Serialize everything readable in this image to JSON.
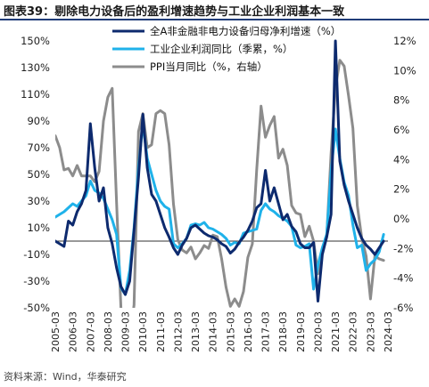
{
  "header": {
    "title": "图表39：剔除电力设备后的盈利增速趋势与工业企业利润基本一致"
  },
  "footer": {
    "source": "资料来源：Wind，华泰研究"
  },
  "colors": {
    "series1": "#0d2a6e",
    "series2": "#1fb2ea",
    "series3": "#8c8c8c",
    "title_rule": "#1f3c78"
  },
  "chart_data": {
    "type": "line",
    "y_left": {
      "min": -50,
      "max": 150,
      "ticks": [
        -50,
        -30,
        -10,
        10,
        30,
        50,
        70,
        90,
        110,
        130,
        150
      ],
      "tick_labels": [
        "-50%",
        "-30%",
        "-10%",
        "10%",
        "30%",
        "50%",
        "70%",
        "90%",
        "110%",
        "130%",
        "150%"
      ]
    },
    "y_right": {
      "min": -6,
      "max": 12,
      "ticks": [
        -6,
        -4,
        -2,
        0,
        2,
        4,
        6,
        8,
        10,
        12
      ],
      "tick_labels": [
        "-6%",
        "-4%",
        "-2%",
        "0%",
        "2%",
        "4%",
        "6%",
        "8%",
        "10%",
        "12%"
      ]
    },
    "x_ticks": [
      "2005-03",
      "2006-03",
      "2007-03",
      "2008-03",
      "2009-03",
      "2010-03",
      "2011-03",
      "2012-03",
      "2013-03",
      "2014-03",
      "2015-03",
      "2016-03",
      "2017-03",
      "2018-03",
      "2019-03",
      "2020-03",
      "2021-03",
      "2022-03",
      "2023-03",
      "2024-03"
    ],
    "legend_position": "top-right",
    "series": [
      {
        "name": "全A非金融非电力设备归母净利增速（%）",
        "axis": "left",
        "x": [
          2005.25,
          2005.5,
          2005.75,
          2006,
          2006.25,
          2006.5,
          2006.75,
          2007,
          2007.25,
          2007.5,
          2007.75,
          2008,
          2008.25,
          2008.5,
          2008.75,
          2009,
          2009.25,
          2009.5,
          2009.75,
          2010,
          2010.25,
          2010.5,
          2010.75,
          2011,
          2011.25,
          2011.5,
          2011.75,
          2012,
          2012.25,
          2012.5,
          2012.75,
          2013,
          2013.25,
          2013.5,
          2013.75,
          2014,
          2014.25,
          2014.5,
          2014.75,
          2015,
          2015.25,
          2015.5,
          2015.75,
          2016,
          2016.25,
          2016.5,
          2016.75,
          2017,
          2017.25,
          2017.5,
          2017.75,
          2018,
          2018.25,
          2018.5,
          2018.75,
          2019,
          2019.25,
          2019.5,
          2019.75,
          2020,
          2020.25,
          2020.5,
          2020.75,
          2021,
          2021.25,
          2021.5,
          2021.75,
          2022,
          2022.25,
          2022.5,
          2022.75,
          2023,
          2023.25,
          2023.5,
          2023.75,
          2024
        ],
        "y": [
          0,
          -2,
          -4,
          15,
          12,
          22,
          28,
          38,
          88,
          55,
          30,
          40,
          10,
          -2,
          -20,
          -34,
          -40,
          -30,
          8,
          48,
          95,
          55,
          35,
          30,
          20,
          10,
          3,
          -5,
          -10,
          -3,
          2,
          10,
          12,
          9,
          6,
          4,
          3,
          1,
          -2,
          -4,
          -9,
          -6,
          -1,
          3,
          8,
          15,
          25,
          28,
          53,
          30,
          40,
          28,
          16,
          20,
          11,
          7,
          -2,
          -5,
          -5,
          -1,
          -45,
          -10,
          3,
          20,
          150,
          60,
          42,
          30,
          20,
          10,
          2,
          -3,
          -6,
          -10,
          -5,
          0
        ]
      },
      {
        "name": "工业企业利润同比（季累，%）",
        "axis": "left",
        "x": [
          2005.25,
          2005.5,
          2005.75,
          2006,
          2006.25,
          2006.5,
          2006.75,
          2007,
          2007.25,
          2007.5,
          2007.75,
          2008,
          2008.25,
          2008.5,
          2008.75,
          2009,
          2009.25,
          2009.5,
          2009.75,
          2010,
          2010.25,
          2010.5,
          2010.75,
          2011,
          2011.25,
          2011.5,
          2011.75,
          2012,
          2012.25,
          2012.5,
          2012.75,
          2013,
          2013.25,
          2013.5,
          2013.75,
          2014,
          2014.25,
          2014.5,
          2014.75,
          2015,
          2015.25,
          2015.5,
          2015.75,
          2016,
          2016.25,
          2016.5,
          2016.75,
          2017,
          2017.25,
          2017.5,
          2017.75,
          2018,
          2018.25,
          2018.5,
          2018.75,
          2019,
          2019.25,
          2019.5,
          2019.75,
          2020,
          2020.25,
          2020.5,
          2020.75,
          2021,
          2021.25,
          2021.5,
          2021.75,
          2022,
          2022.25,
          2022.5,
          2022.75,
          2023,
          2023.25,
          2023.5,
          2023.75,
          2024
        ],
        "y": [
          18,
          20,
          22,
          25,
          28,
          26,
          30,
          34,
          45,
          38,
          36,
          32,
          24,
          16,
          5,
          -35,
          -40,
          -22,
          10,
          55,
          88,
          62,
          50,
          38,
          30,
          26,
          24,
          -2,
          -5,
          -2,
          2,
          12,
          13,
          12,
          14,
          10,
          9,
          7,
          5,
          2,
          -3,
          -1,
          -2,
          6,
          7,
          8,
          9,
          23,
          28,
          24,
          22,
          19,
          17,
          15,
          11,
          -3,
          -5,
          -4,
          -2,
          -36,
          -18,
          -5,
          5,
          52,
          84,
          62,
          44,
          34,
          12,
          -5,
          -3,
          -22,
          -17,
          -14,
          -8,
          5
        ]
      },
      {
        "name": "PPI当月同比（%，右轴）",
        "axis": "right",
        "x": [
          2005.25,
          2005.5,
          2005.75,
          2006,
          2006.25,
          2006.5,
          2006.75,
          2007,
          2007.25,
          2007.5,
          2007.75,
          2008,
          2008.25,
          2008.5,
          2008.75,
          2009,
          2009.25,
          2009.5,
          2009.75,
          2010,
          2010.25,
          2010.5,
          2010.75,
          2011,
          2011.25,
          2011.5,
          2011.75,
          2012,
          2012.25,
          2012.5,
          2012.75,
          2013,
          2013.25,
          2013.5,
          2013.75,
          2014,
          2014.25,
          2014.5,
          2014.75,
          2015,
          2015.25,
          2015.5,
          2015.75,
          2016,
          2016.25,
          2016.5,
          2016.75,
          2017,
          2017.25,
          2017.5,
          2017.75,
          2018,
          2018.25,
          2018.5,
          2018.75,
          2019,
          2019.25,
          2019.5,
          2019.75,
          2020,
          2020.25,
          2020.5,
          2020.75,
          2021,
          2021.25,
          2021.5,
          2021.75,
          2022,
          2022.25,
          2022.5,
          2022.75,
          2023,
          2023.25,
          2023.5,
          2023.75,
          2024
        ],
        "y": [
          5.6,
          4.8,
          3.3,
          3.4,
          2.9,
          3.6,
          2.9,
          2.9,
          2.9,
          2.5,
          3.2,
          6.6,
          8.2,
          8.8,
          1.1,
          -6,
          -7.8,
          -8.2,
          -5.8,
          5.9,
          7.1,
          4.8,
          5,
          7.1,
          7.3,
          7.1,
          5,
          1,
          -1.4,
          -2.1,
          -2.3,
          -1.9,
          -2.7,
          -2.3,
          -1.8,
          -2,
          -1.1,
          -1.2,
          -2.7,
          -4.6,
          -5.9,
          -5.4,
          -5.9,
          -4.9,
          -2.6,
          -1.7,
          3.3,
          7.6,
          5.5,
          6.3,
          6.9,
          4.1,
          4.7,
          3.6,
          0.9,
          0.4,
          0.3,
          -1.2,
          -0.5,
          -1.5,
          -3.7,
          -2.1,
          -1.2,
          4.4,
          8.8,
          10.7,
          10.3,
          8.3,
          6.1,
          0.9,
          -1.3,
          -2.5,
          -5.4,
          -2.5,
          -2.7,
          -2.8
        ]
      }
    ]
  }
}
